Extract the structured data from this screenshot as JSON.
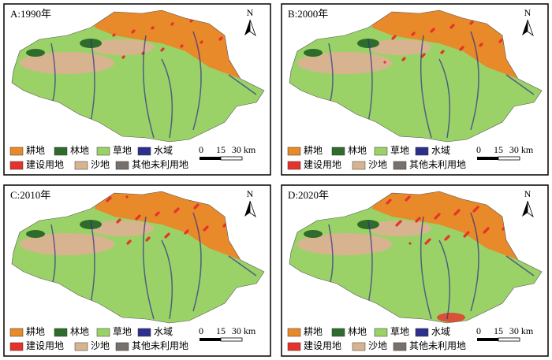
{
  "panels": [
    {
      "label": "A:1990年"
    },
    {
      "label": "B:2000年"
    },
    {
      "label": "C:2010年"
    },
    {
      "label": "D:2020年"
    }
  ],
  "legend": [
    {
      "name": "耕地",
      "color": "#e8892a"
    },
    {
      "name": "林地",
      "color": "#2f6b2a"
    },
    {
      "name": "草地",
      "color": "#9bd267"
    },
    {
      "name": "水域",
      "color": "#2c2f8c"
    },
    {
      "name": "建设用地",
      "color": "#e6322a"
    },
    {
      "name": "沙地",
      "color": "#d7b48f"
    },
    {
      "name": "其他未利用地",
      "color": "#77706b"
    }
  ],
  "scale_bar": [
    "0",
    "15",
    "30 km"
  ],
  "north": "N"
}
